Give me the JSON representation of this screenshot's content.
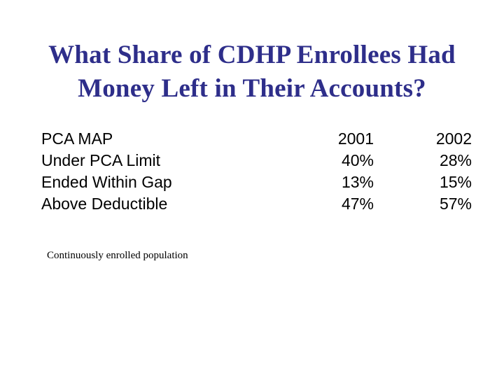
{
  "slide": {
    "title_line1": "What Share of CDHP Enrollees Had",
    "title_line2": "Money Left in Their Accounts?",
    "title_color": "#2e2e8a",
    "table": {
      "header": {
        "label": "PCA MAP",
        "col1": "2001",
        "col2": "2002"
      },
      "rows": [
        {
          "label": "Under PCA Limit",
          "col1": "40%",
          "col2": "28%"
        },
        {
          "label": "Ended Within Gap",
          "col1": "13%",
          "col2": "15%"
        },
        {
          "label": "Above Deductible",
          "col1": "47%",
          "col2": "57%"
        }
      ]
    },
    "footnote": "Continuously enrolled population"
  }
}
